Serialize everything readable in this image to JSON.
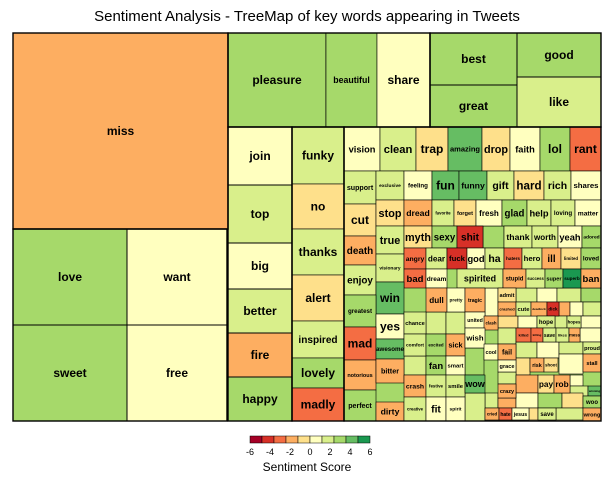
{
  "chart_data": {
    "type": "treemap",
    "title": "Sentiment Analysis - TreeMap of key words appearing in Tweets",
    "legend": {
      "title": "Sentiment Score",
      "ticks": [
        -6,
        -4,
        -2,
        0,
        2,
        4,
        6
      ],
      "colors": [
        "#a50026",
        "#d73027",
        "#f46d43",
        "#fdae61",
        "#fee08b",
        "#ffffbf",
        "#d9ef8b",
        "#a6d96a",
        "#66bd63",
        "#1a9850"
      ]
    },
    "labeled_tiles": [
      {
        "word": "miss",
        "score": -1.6
      },
      {
        "word": "love",
        "score": 3
      },
      {
        "word": "want",
        "score": 1
      },
      {
        "word": "sweet",
        "score": 3
      },
      {
        "word": "free",
        "score": 1
      },
      {
        "word": "pleasure",
        "score": 3
      },
      {
        "word": "beautiful",
        "score": 3
      },
      {
        "word": "share",
        "score": 1
      },
      {
        "word": "best",
        "score": 3
      },
      {
        "word": "good",
        "score": 3
      },
      {
        "word": "great",
        "score": 3
      },
      {
        "word": "like",
        "score": 2
      },
      {
        "word": "join",
        "score": 1
      },
      {
        "word": "top",
        "score": 2
      },
      {
        "word": "big",
        "score": 1
      },
      {
        "word": "better",
        "score": 2
      },
      {
        "word": "fire",
        "score": -2
      },
      {
        "word": "happy",
        "score": 3
      },
      {
        "word": "funky",
        "score": 2
      },
      {
        "word": "no",
        "score": -1
      },
      {
        "word": "thanks",
        "score": 2
      },
      {
        "word": "alert",
        "score": -1
      },
      {
        "word": "inspired",
        "score": 2
      },
      {
        "word": "lovely",
        "score": 3
      },
      {
        "word": "madly",
        "score": -3
      },
      {
        "word": "vision",
        "score": 1
      },
      {
        "word": "clean",
        "score": 2
      },
      {
        "word": "trap",
        "score": -1
      },
      {
        "word": "amazing",
        "score": 4
      },
      {
        "word": "drop",
        "score": -1
      },
      {
        "word": "faith",
        "score": 1
      },
      {
        "word": "lol",
        "score": 3
      },
      {
        "word": "rant",
        "score": -3
      },
      {
        "word": "support",
        "score": 2
      },
      {
        "word": "exclusive",
        "score": 2
      },
      {
        "word": "feeling",
        "score": 1
      },
      {
        "word": "fun",
        "score": 4
      },
      {
        "word": "funny",
        "score": 4
      },
      {
        "word": "gift",
        "score": 2
      },
      {
        "word": "hard",
        "score": -1
      },
      {
        "word": "rich",
        "score": 2
      },
      {
        "word": "shares",
        "score": 1
      },
      {
        "word": "cut",
        "score": -1
      },
      {
        "word": "stop",
        "score": -1
      },
      {
        "word": "dread",
        "score": -2
      },
      {
        "word": "favorite",
        "score": 2
      },
      {
        "word": "forget",
        "score": -1
      },
      {
        "word": "fresh",
        "score": 1
      },
      {
        "word": "glad",
        "score": 3
      },
      {
        "word": "help",
        "score": 2
      },
      {
        "word": "loving",
        "score": 2
      },
      {
        "word": "matter",
        "score": 1
      },
      {
        "word": "death",
        "score": -2
      },
      {
        "word": "true",
        "score": 2
      },
      {
        "word": "myth",
        "score": -1
      },
      {
        "word": "sexy",
        "score": 3
      },
      {
        "word": "shit",
        "score": -4
      },
      {
        "word": "thank",
        "score": 2
      },
      {
        "word": "worth",
        "score": 2
      },
      {
        "word": "yeah",
        "score": 1
      },
      {
        "word": "adored",
        "score": 3
      },
      {
        "word": "enjoy",
        "score": 2
      },
      {
        "word": "visionary",
        "score": 2
      },
      {
        "word": "angry",
        "score": -3
      },
      {
        "word": "dear",
        "score": 2
      },
      {
        "word": "fuck",
        "score": -4
      },
      {
        "word": "god",
        "score": 1
      },
      {
        "word": "ha",
        "score": 2
      },
      {
        "word": "haters",
        "score": -3
      },
      {
        "word": "hero",
        "score": 2
      },
      {
        "word": "ill",
        "score": -2
      },
      {
        "word": "limited",
        "score": -1
      },
      {
        "word": "loved",
        "score": 3
      },
      {
        "word": "bad",
        "score": -3
      },
      {
        "word": "dream",
        "score": 1
      },
      {
        "word": "spirited",
        "score": 2
      },
      {
        "word": "stupid",
        "score": -2
      },
      {
        "word": "success",
        "score": 2
      },
      {
        "word": "super",
        "score": 3
      },
      {
        "word": "superb",
        "score": 5
      },
      {
        "word": "ban",
        "score": -2
      },
      {
        "word": "win",
        "score": 4
      },
      {
        "word": "greatest",
        "score": 3
      },
      {
        "word": "dull",
        "score": -2
      },
      {
        "word": "pretty",
        "score": 1
      },
      {
        "word": "tragic",
        "score": -2
      },
      {
        "word": "admit",
        "score": -1
      },
      {
        "word": "crashed",
        "score": -2
      },
      {
        "word": "cute",
        "score": 2
      },
      {
        "word": "deadlock",
        "score": -2
      },
      {
        "word": "dick",
        "score": -4
      },
      {
        "word": "yes",
        "score": 1
      },
      {
        "word": "chance",
        "score": 2
      },
      {
        "word": "united",
        "score": 1
      },
      {
        "word": "clash",
        "score": -2
      },
      {
        "word": "hope",
        "score": 2
      },
      {
        "word": "hopes",
        "score": 2
      },
      {
        "word": "mad",
        "score": -3
      },
      {
        "word": "awesome",
        "score": 4
      },
      {
        "word": "comfort",
        "score": 2
      },
      {
        "word": "excited",
        "score": 3
      },
      {
        "word": "sick",
        "score": -2
      },
      {
        "word": "wish",
        "score": 1
      },
      {
        "word": "killed",
        "score": -3
      },
      {
        "word": "killing",
        "score": -3
      },
      {
        "word": "save",
        "score": 2
      },
      {
        "word": "likes",
        "score": 2
      },
      {
        "word": "mess",
        "score": -2
      },
      {
        "word": "cool",
        "score": 1
      },
      {
        "word": "fail",
        "score": -2
      },
      {
        "word": "proud",
        "score": 2
      },
      {
        "word": "reach",
        "score": 1
      },
      {
        "word": "notorious",
        "score": -2
      },
      {
        "word": "bitter",
        "score": -2
      },
      {
        "word": "fan",
        "score": 3
      },
      {
        "word": "smart",
        "score": 1
      },
      {
        "word": "grace",
        "score": 1
      },
      {
        "word": "risk",
        "score": -2
      },
      {
        "word": "shoot",
        "score": -1
      },
      {
        "word": "stall",
        "score": -2
      },
      {
        "word": "crash",
        "score": -2
      },
      {
        "word": "festive",
        "score": 2
      },
      {
        "word": "smile",
        "score": 2
      },
      {
        "word": "wow",
        "score": 4
      },
      {
        "word": "crazy",
        "score": -2
      },
      {
        "word": "pay",
        "score": -1
      },
      {
        "word": "rob",
        "score": -2
      },
      {
        "word": "winning",
        "score": 4
      },
      {
        "word": "woo",
        "score": 3
      },
      {
        "word": "perfect",
        "score": 3
      },
      {
        "word": "dirty",
        "score": -2
      },
      {
        "word": "creative",
        "score": 2
      },
      {
        "word": "fit",
        "score": 1
      },
      {
        "word": "spirit",
        "score": 1
      },
      {
        "word": "cried",
        "score": -2
      },
      {
        "word": "hate",
        "score": -3
      },
      {
        "word": "jesus",
        "score": 1
      },
      {
        "word": "save",
        "score": 2
      },
      {
        "word": "wrong",
        "score": -2
      }
    ]
  }
}
